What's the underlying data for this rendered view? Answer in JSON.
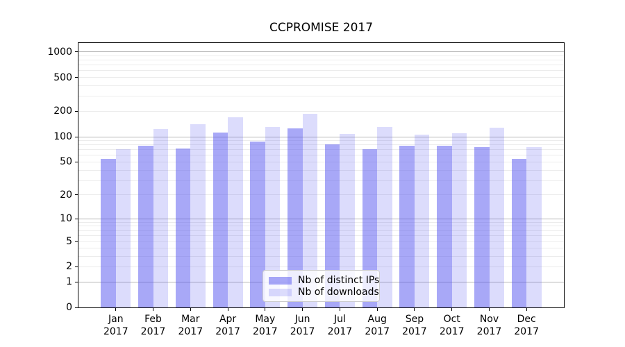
{
  "chart_data": {
    "type": "bar",
    "title": "CCPROMISE 2017",
    "categories": [
      "Jan",
      "Feb",
      "Mar",
      "Apr",
      "May",
      "Jun",
      "Jul",
      "Aug",
      "Sep",
      "Oct",
      "Nov",
      "Dec"
    ],
    "category_year": "2017",
    "series": [
      {
        "name": "Nb of distinct IPs",
        "color": "rgba(82,82,240,0.50)",
        "values": [
          54,
          78,
          72,
          112,
          88,
          125,
          81,
          71,
          78,
          78,
          76,
          54
        ]
      },
      {
        "name": "Nb of downloads",
        "color": "rgba(82,82,240,0.20)",
        "values": [
          71,
          123,
          140,
          170,
          130,
          186,
          107,
          130,
          106,
          110,
          128,
          76
        ]
      }
    ],
    "xlabel": "",
    "ylabel": "",
    "y_scale": "log10(value+1)",
    "ylim": [
      0,
      1270
    ],
    "y_ticks": [
      0,
      1,
      2,
      5,
      10,
      20,
      50,
      100,
      200,
      500,
      1000
    ],
    "grid": {
      "enabled": true,
      "major_values": [
        1,
        10,
        100,
        1000
      ],
      "major_color": "#b4b4b4",
      "minor_color": "#ececec"
    },
    "legend": {
      "position": "lower-center"
    }
  },
  "colors": {
    "background": "#ffffff",
    "text": "#000000",
    "spine": "#000000",
    "legend_border": "#cccccc"
  }
}
